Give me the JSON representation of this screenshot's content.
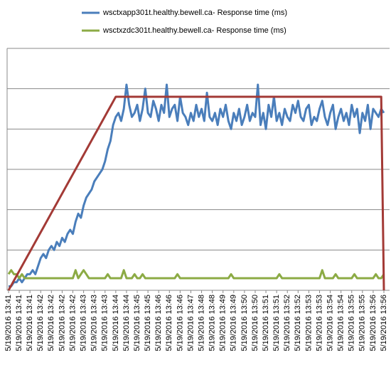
{
  "chart_data": {
    "type": "line",
    "categories": [
      "5/19/2016 13:41",
      null,
      null,
      null,
      "5/19/2016 13:41",
      null,
      null,
      null,
      "5/19/2016 13:41",
      null,
      null,
      null,
      "5/19/2016 13:42",
      null,
      null,
      null,
      "5/19/2016 13:42",
      null,
      null,
      null,
      "5/19/2016 13:42",
      null,
      null,
      null,
      "5/19/2016 13:42",
      null,
      null,
      null,
      "5/19/2016 13:43",
      null,
      null,
      null,
      "5/19/2016 13:43",
      null,
      null,
      null,
      "5/19/2016 13:43",
      null,
      null,
      null,
      "5/19/2016 13:44",
      null,
      null,
      null,
      "5/19/2016 13:44",
      null,
      null,
      null,
      "5/19/2016 13:45",
      null,
      null,
      null,
      "5/19/2016 13:45",
      null,
      null,
      null,
      "5/19/2016 13:46",
      null,
      null,
      null,
      "5/19/2016 13:46",
      null,
      null,
      null,
      "5/19/2016 13:46",
      null,
      null,
      null,
      "5/19/2016 13:47",
      null,
      null,
      null,
      "5/19/2016 13:48",
      null,
      null,
      null,
      "5/19/2016 13:48",
      null,
      null,
      null,
      "5/19/2016 13:49",
      null,
      null,
      null,
      "5/19/2016 13:49",
      null,
      null,
      null,
      "5/19/2016 13:50",
      null,
      null,
      null,
      "5/19/2016 13:50",
      null,
      null,
      null,
      "5/19/2016 13:51",
      null,
      null,
      null,
      "5/19/2016 13:51",
      null,
      null,
      null,
      "5/19/2016 13:52",
      null,
      null,
      null,
      "5/19/2016 13:52",
      null,
      null,
      null,
      "5/19/2016 13:53",
      null,
      null,
      null,
      "5/19/2016 13:53",
      null,
      null,
      null,
      "5/19/2016 13:54",
      null,
      null,
      null,
      "5/19/2016 13:54",
      null,
      null,
      null,
      "5/19/2016 13:55",
      null,
      null,
      null,
      "5/19/2016 13:55",
      null,
      null,
      null,
      "5/19/2016 13:56",
      null,
      null,
      null,
      "5/19/2016 13:56"
    ],
    "series": [
      {
        "name": "wsctxapp301t.healthy.bewell.ca-  Response time (ms)",
        "color": "#4a7ebb",
        "values": [
          0.1,
          0.1,
          0.2,
          0.2,
          0.3,
          0.2,
          0.3,
          0.4,
          0.4,
          0.5,
          0.4,
          0.6,
          0.8,
          0.9,
          0.8,
          1.0,
          1.1,
          1.0,
          1.2,
          1.1,
          1.3,
          1.2,
          1.4,
          1.5,
          1.4,
          1.7,
          1.9,
          1.8,
          2.1,
          2.3,
          2.4,
          2.5,
          2.7,
          2.8,
          2.9,
          3.0,
          3.2,
          3.5,
          3.7,
          4.1,
          4.3,
          4.4,
          4.2,
          4.5,
          5.1,
          4.6,
          4.3,
          4.4,
          4.6,
          4.2,
          4.5,
          5.0,
          4.4,
          4.3,
          4.7,
          4.5,
          4.2,
          4.6,
          4.4,
          5.1,
          4.3,
          4.5,
          4.6,
          4.2,
          4.8,
          4.4,
          4.3,
          4.1,
          4.4,
          4.2,
          4.6,
          4.3,
          4.5,
          4.2,
          4.9,
          4.3,
          4.2,
          4.4,
          4.1,
          4.5,
          4.3,
          4.6,
          4.2,
          4.0,
          4.4,
          4.2,
          4.5,
          4.1,
          4.3,
          4.6,
          4.2,
          4.4,
          4.3,
          5.1,
          4.1,
          4.4,
          4.0,
          4.6,
          4.3,
          4.8,
          4.2,
          4.4,
          4.1,
          4.5,
          4.3,
          4.2,
          4.6,
          4.4,
          4.7,
          4.3,
          4.2,
          4.5,
          4.6,
          4.1,
          4.3,
          4.2,
          4.5,
          4.7,
          4.3,
          4.1,
          4.4,
          4.6,
          4.0,
          4.3,
          4.5,
          4.2,
          4.4,
          4.1,
          4.6,
          4.3,
          4.5,
          3.9,
          4.4,
          4.2,
          4.6,
          4.0,
          4.5,
          4.4,
          4.3,
          4.5,
          4.4
        ]
      },
      {
        "name": "wsctxzdc301t.healthy.bewell.ca-  Response time (ms)",
        "color": "#8cab45",
        "values": [
          0.4,
          0.5,
          0.4,
          0.4,
          0.3,
          0.4,
          0.3,
          0.3,
          0.3,
          0.3,
          0.3,
          0.3,
          0.3,
          0.3,
          0.3,
          0.3,
          0.3,
          0.3,
          0.3,
          0.3,
          0.3,
          0.3,
          0.3,
          0.3,
          0.3,
          0.5,
          0.3,
          0.4,
          0.5,
          0.4,
          0.3,
          0.3,
          0.3,
          0.3,
          0.3,
          0.3,
          0.3,
          0.4,
          0.3,
          0.3,
          0.3,
          0.3,
          0.3,
          0.5,
          0.3,
          0.3,
          0.3,
          0.4,
          0.3,
          0.3,
          0.4,
          0.3,
          0.3,
          0.3,
          0.3,
          0.3,
          0.3,
          0.3,
          0.3,
          0.3,
          0.3,
          0.3,
          0.3,
          0.4,
          0.3,
          0.3,
          0.3,
          0.3,
          0.3,
          0.3,
          0.3,
          0.3,
          0.3,
          0.3,
          0.3,
          0.3,
          0.3,
          0.3,
          0.3,
          0.3,
          0.3,
          0.3,
          0.3,
          0.4,
          0.3,
          0.3,
          0.3,
          0.3,
          0.3,
          0.3,
          0.3,
          0.3,
          0.3,
          0.3,
          0.3,
          0.3,
          0.3,
          0.3,
          0.3,
          0.3,
          0.3,
          0.4,
          0.3,
          0.3,
          0.3,
          0.3,
          0.3,
          0.3,
          0.3,
          0.3,
          0.3,
          0.3,
          0.3,
          0.3,
          0.3,
          0.3,
          0.3,
          0.5,
          0.3,
          0.3,
          0.3,
          0.3,
          0.4,
          0.3,
          0.3,
          0.3,
          0.3,
          0.3,
          0.3,
          0.4,
          0.3,
          0.3,
          0.3,
          0.3,
          0.3,
          0.3,
          0.3,
          0.4,
          0.3,
          0.3,
          0.4
        ]
      },
      {
        "color": "#a33a36",
        "values": [
          0,
          0.12,
          0.24,
          0.36,
          0.48,
          0.6,
          0.72,
          0.84,
          0.96,
          1.08,
          1.2,
          1.32,
          1.44,
          1.56,
          1.68,
          1.8,
          1.92,
          2.04,
          2.16,
          2.28,
          2.4,
          2.52,
          2.64,
          2.76,
          2.88,
          3.0,
          3.12,
          3.24,
          3.36,
          3.48,
          3.6,
          3.72,
          3.84,
          3.96,
          4.08,
          4.2,
          4.32,
          4.44,
          4.56,
          4.68,
          4.8,
          4.8,
          4.8,
          4.8,
          4.8,
          4.8,
          4.8,
          4.8,
          4.8,
          4.8,
          4.8,
          4.8,
          4.8,
          4.8,
          4.8,
          4.8,
          4.8,
          4.8,
          4.8,
          4.8,
          4.8,
          4.8,
          4.8,
          4.8,
          4.8,
          4.8,
          4.8,
          4.8,
          4.8,
          4.8,
          4.8,
          4.8,
          4.8,
          4.8,
          4.8,
          4.8,
          4.8,
          4.8,
          4.8,
          4.8,
          4.8,
          4.8,
          4.8,
          4.8,
          4.8,
          4.8,
          4.8,
          4.8,
          4.8,
          4.8,
          4.8,
          4.8,
          4.8,
          4.8,
          4.8,
          4.8,
          4.8,
          4.8,
          4.8,
          4.8,
          4.8,
          4.8,
          4.8,
          4.8,
          4.8,
          4.8,
          4.8,
          4.8,
          4.8,
          4.8,
          4.8,
          4.8,
          4.8,
          4.8,
          4.8,
          4.8,
          4.8,
          4.8,
          4.8,
          4.8,
          4.8,
          4.8,
          4.8,
          4.8,
          4.8,
          4.8,
          4.8,
          4.8,
          4.8,
          4.8,
          4.8,
          4.8,
          4.8,
          4.8,
          4.8,
          4.8,
          4.8,
          4.8,
          4.8,
          4.8,
          0
        ]
      }
    ],
    "ylim": [
      0,
      6
    ],
    "yticks": [
      0,
      1,
      2,
      3,
      4,
      5,
      6
    ],
    "grid": true
  }
}
